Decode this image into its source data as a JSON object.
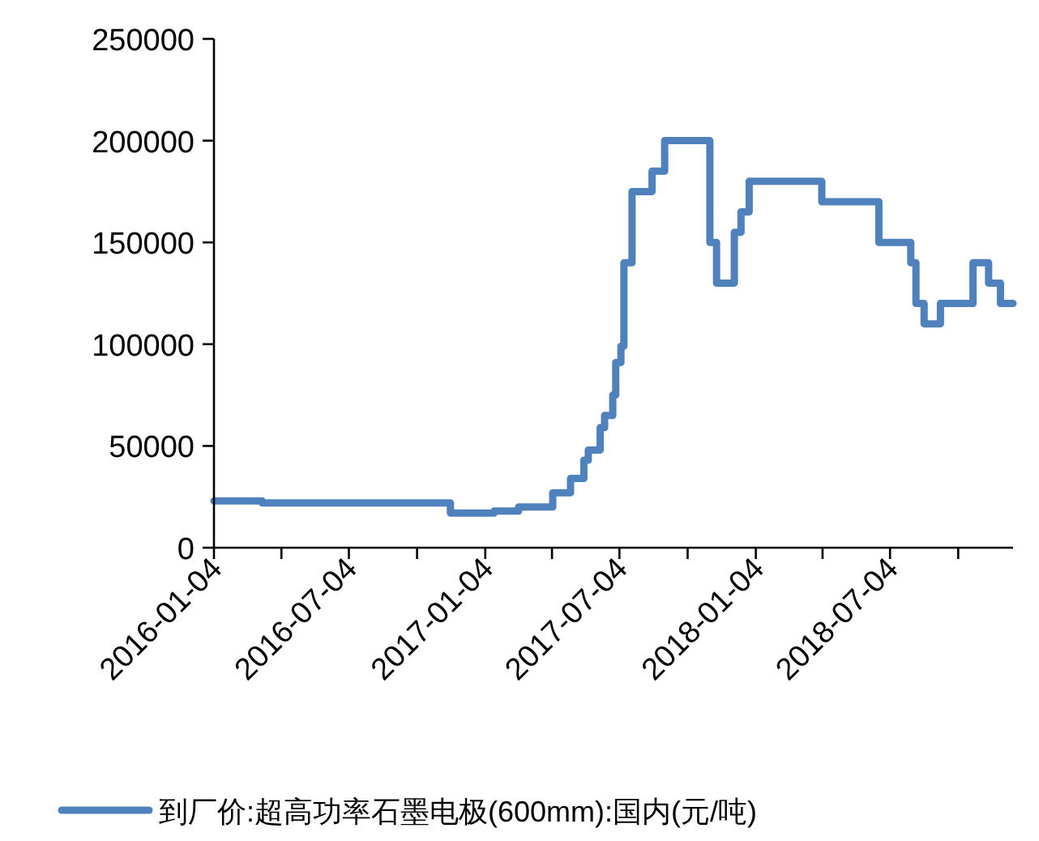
{
  "chart_data": {
    "type": "step",
    "x": [
      "2016-01-04",
      "2016-03-09",
      "2016-11-18",
      "2017-01-16",
      "2017-02-18",
      "2017-04-05",
      "2017-04-29",
      "2017-05-17",
      "2017-05-23",
      "2017-06-08",
      "2017-06-14",
      "2017-06-25",
      "2017-06-29",
      "2017-07-06",
      "2017-07-10",
      "2017-07-21",
      "2017-08-17",
      "2017-09-03",
      "2017-11-03",
      "2017-11-12",
      "2017-12-06",
      "2017-12-15",
      "2017-12-26",
      "2018-04-03",
      "2018-06-19",
      "2018-08-01",
      "2018-08-08",
      "2018-08-19",
      "2018-09-10",
      "2018-10-24",
      "2018-11-14",
      "2018-11-30",
      "2018-12-17"
    ],
    "series": [
      {
        "name": "到厂价:超高功率石墨电极(600mm):国内(元/吨)",
        "color": "#4f81bd",
        "values": [
          23000,
          22000,
          17000,
          18000,
          20000,
          27000,
          34000,
          43000,
          48000,
          59000,
          65000,
          75000,
          91000,
          99000,
          140000,
          175000,
          185000,
          200000,
          150000,
          130000,
          155000,
          165000,
          180000,
          170000,
          150000,
          140000,
          120000,
          110000,
          120000,
          140000,
          130000,
          120000,
          120000
        ]
      }
    ],
    "xlim": [
      "2016-01-04",
      "2018-12-17"
    ],
    "xticks": [
      {
        "value": "2016-01-04",
        "label": "2016-01-04"
      },
      {
        "value": "2016-04-04",
        "label": null
      },
      {
        "value": "2016-07-04",
        "label": "2016-07-04"
      },
      {
        "value": "2016-10-04",
        "label": null
      },
      {
        "value": "2017-01-04",
        "label": "2017-01-04"
      },
      {
        "value": "2017-04-04",
        "label": null
      },
      {
        "value": "2017-07-04",
        "label": "2017-07-04"
      },
      {
        "value": "2017-10-04",
        "label": null
      },
      {
        "value": "2018-01-04",
        "label": "2018-01-04"
      },
      {
        "value": "2018-04-04",
        "label": null
      },
      {
        "value": "2018-07-04",
        "label": "2018-07-04"
      },
      {
        "value": "2018-10-04",
        "label": null
      }
    ],
    "ylim": [
      0,
      250000
    ],
    "yticks": [
      0,
      50000,
      100000,
      150000,
      200000,
      250000
    ],
    "grid": false,
    "legend": "bottom",
    "marker": "none",
    "line_style": "solid"
  }
}
